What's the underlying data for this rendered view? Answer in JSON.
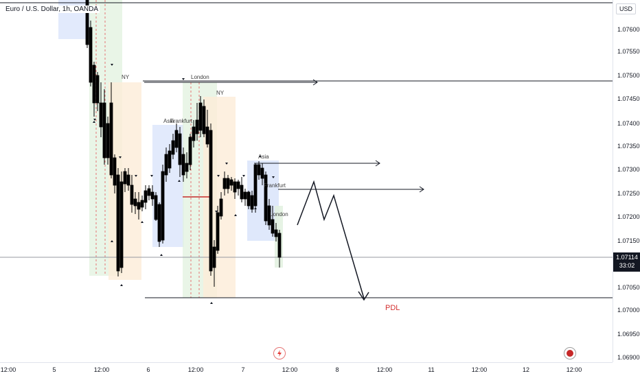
{
  "header": {
    "symbol": "Euro / U.S. Dollar, 1h, OANDA",
    "currency": "USD"
  },
  "price_axis": {
    "ticks": [
      "1.07600",
      "1.07550",
      "1.07500",
      "1.07450",
      "1.07400",
      "1.07350",
      "1.07300",
      "1.07250",
      "1.07200",
      "1.07150",
      "1.07050",
      "1.07000",
      "1.06950",
      "1.06900"
    ],
    "last_price": "1.07114",
    "countdown": "33:02"
  },
  "time_axis": {
    "ticks": [
      "12:00",
      "5",
      "12:00",
      "6",
      "12:00",
      "7",
      "12:00",
      "8",
      "12:00",
      "11",
      "12:00",
      "12",
      "12:00"
    ]
  },
  "annotations": {
    "ny_1": "NY",
    "london_1": "London",
    "ny_2": "NY",
    "asia_1": "Asia",
    "frankfurt_1": "Frankfurt",
    "asia_2": "Asia",
    "frankfurt_2": "Frankfurt",
    "london_2": "London",
    "pdl": "PDL"
  },
  "colors": {
    "bull": "#ffffff",
    "bear": "#000000",
    "pdl": "#d32f2f",
    "asia_box": "#dbe5fb",
    "frankfurt_box": "#e3f2e1",
    "ny_box": "#fdecd8"
  },
  "icons": {
    "flash": "flash-icon",
    "record": "record-icon"
  }
}
